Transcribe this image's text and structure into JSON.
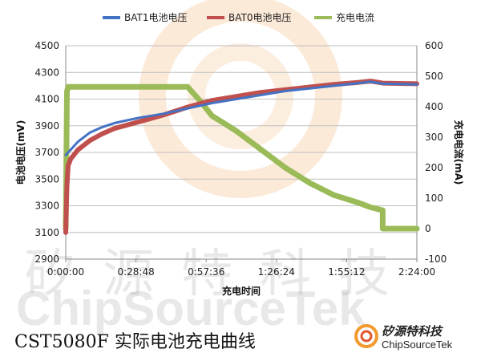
{
  "chart_data": {
    "type": "line",
    "title": "",
    "xlabel": "充电时间",
    "ylabel": "电池电压(mV)",
    "y2label": "充电电流(mA)",
    "x_unit": "seconds",
    "x_ticks": [
      "0:00:00",
      "0:28:48",
      "0:57:36",
      "1:26:24",
      "1:55:12",
      "2:24:00"
    ],
    "xlim": [
      0,
      8640
    ],
    "ylim": [
      2900,
      4500
    ],
    "y_ticks": [
      2900,
      3100,
      3300,
      3500,
      3700,
      3900,
      4100,
      4300,
      4500
    ],
    "y2lim": [
      -100,
      600
    ],
    "y2_ticks": [
      -100,
      0,
      100,
      200,
      300,
      400,
      500,
      600
    ],
    "grid": "horizontal",
    "legend_position": "top",
    "series": [
      {
        "name": "BAT1电池电压",
        "axis": "left",
        "color": "#4472c4",
        "x": [
          0,
          30,
          60,
          120,
          300,
          600,
          900,
          1200,
          1800,
          2400,
          3000,
          3600,
          4200,
          4800,
          5400,
          6000,
          6600,
          7200,
          7500,
          7800,
          8640
        ],
        "y": [
          3680,
          3690,
          3700,
          3720,
          3780,
          3850,
          3890,
          3920,
          3960,
          3990,
          4030,
          4070,
          4100,
          4130,
          4160,
          4180,
          4200,
          4220,
          4230,
          4215,
          4210
        ]
      },
      {
        "name": "BAT0电池电压",
        "axis": "left",
        "color": "#c0504d",
        "x": [
          0,
          30,
          60,
          120,
          300,
          600,
          900,
          1200,
          1800,
          2400,
          3000,
          3600,
          4200,
          4800,
          5400,
          6000,
          6600,
          7200,
          7500,
          7800,
          8640
        ],
        "y": [
          3100,
          3450,
          3600,
          3650,
          3720,
          3790,
          3840,
          3880,
          3930,
          3980,
          4040,
          4090,
          4120,
          4150,
          4170,
          4190,
          4210,
          4225,
          4235,
          4220,
          4215
        ]
      },
      {
        "name": "充电电流",
        "axis": "right",
        "color": "#9bbb59",
        "x": [
          0,
          30,
          60,
          300,
          600,
          1200,
          1800,
          2400,
          3000,
          3300,
          3600,
          4200,
          4800,
          5400,
          6000,
          6600,
          7200,
          7500,
          7799,
          7800,
          8640
        ],
        "y": [
          0,
          450,
          465,
          465,
          465,
          465,
          465,
          465,
          465,
          420,
          370,
          320,
          260,
          200,
          150,
          110,
          85,
          70,
          60,
          0,
          0
        ]
      }
    ]
  },
  "footer": {
    "caption": "CST5080F 实际电池充电曲线",
    "brand_cn": "矽源特科技",
    "brand_en": "ChipSourceTek",
    "watermark_cn": "矽源特科技",
    "watermark_en": "ChipSourceTek"
  }
}
